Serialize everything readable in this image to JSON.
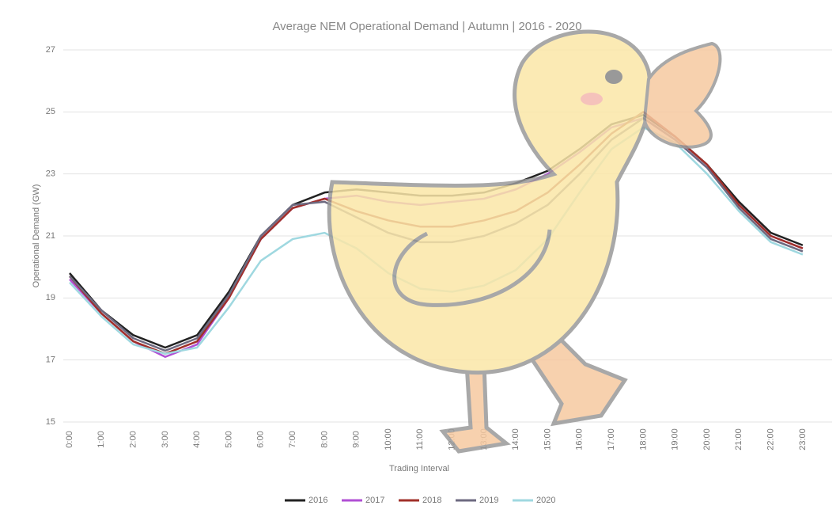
{
  "chart_data": {
    "type": "line",
    "title": "Average NEM Operational Demand | Autumn | 2016 - 2020",
    "x_label": "Trading Interval",
    "y_label": "Operational Demand (GW)",
    "categories": [
      "0:00",
      "1:00",
      "2:00",
      "3:00",
      "4:00",
      "5:00",
      "6:00",
      "7:00",
      "8:00",
      "9:00",
      "10:00",
      "11:00",
      "12:00",
      "13:00",
      "14:00",
      "15:00",
      "16:00",
      "17:00",
      "18:00",
      "19:00",
      "20:00",
      "21:00",
      "22:00",
      "23:00"
    ],
    "series": [
      {
        "name": "2016",
        "color": "#222222",
        "values": [
          19.8,
          18.6,
          17.8,
          17.4,
          17.8,
          19.2,
          21.0,
          22.0,
          22.4,
          22.5,
          22.4,
          22.3,
          22.3,
          22.4,
          22.7,
          23.1,
          23.8,
          24.6,
          24.9,
          24.2,
          23.3,
          22.1,
          21.1,
          20.7
        ]
      },
      {
        "name": "2017",
        "color": "#b04fd4",
        "values": [
          19.6,
          18.5,
          17.6,
          17.1,
          17.5,
          19.0,
          20.9,
          21.9,
          22.2,
          22.3,
          22.1,
          22.0,
          22.1,
          22.2,
          22.5,
          23.0,
          23.7,
          24.5,
          24.8,
          24.1,
          23.2,
          22.0,
          21.0,
          20.6
        ]
      },
      {
        "name": "2018",
        "color": "#a0302a",
        "values": [
          19.7,
          18.5,
          17.6,
          17.2,
          17.6,
          19.0,
          20.9,
          21.9,
          22.2,
          21.8,
          21.5,
          21.3,
          21.3,
          21.5,
          21.8,
          22.4,
          23.3,
          24.3,
          25.0,
          24.2,
          23.3,
          22.0,
          21.0,
          20.6
        ]
      },
      {
        "name": "2019",
        "color": "#6d6a80",
        "values": [
          19.7,
          18.6,
          17.7,
          17.3,
          17.7,
          19.1,
          21.0,
          22.0,
          22.1,
          21.6,
          21.1,
          20.8,
          20.8,
          21.0,
          21.4,
          22.0,
          23.0,
          24.1,
          24.8,
          24.1,
          23.2,
          21.9,
          20.9,
          20.5
        ]
      },
      {
        "name": "2020",
        "color": "#9fd8e0",
        "values": [
          19.5,
          18.4,
          17.5,
          17.2,
          17.4,
          18.7,
          20.2,
          20.9,
          21.1,
          20.6,
          19.8,
          19.3,
          19.2,
          19.4,
          19.9,
          20.9,
          22.4,
          23.8,
          24.5,
          24.0,
          23.0,
          21.8,
          20.8,
          20.4
        ]
      }
    ],
    "ylim": [
      15,
      27
    ],
    "yticks": [
      15,
      17,
      19,
      21,
      23,
      25,
      27
    ],
    "grid": true,
    "legend": "bottom"
  }
}
